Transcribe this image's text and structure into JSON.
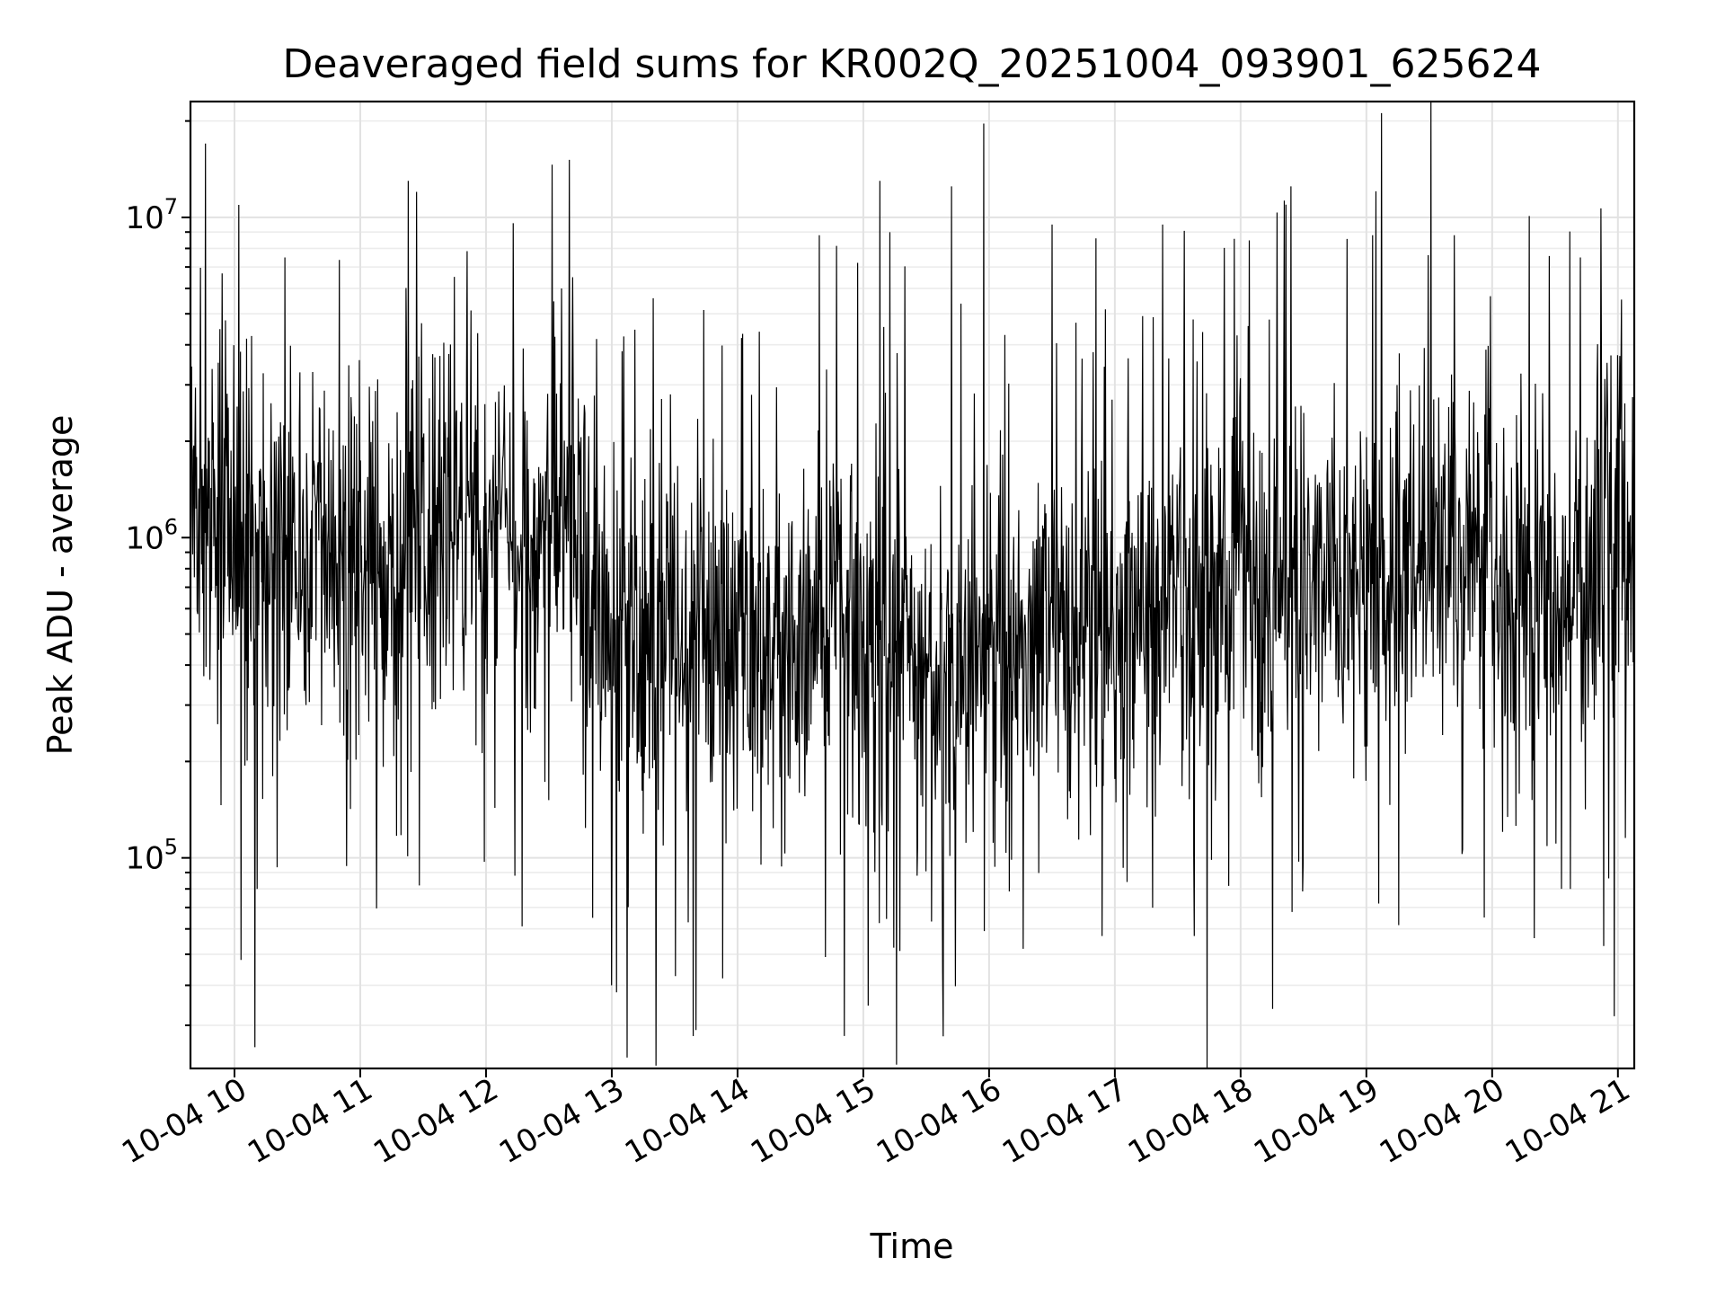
{
  "chart_data": {
    "type": "line",
    "title": "Deaveraged field sums for KR002Q_20251004_093901_625624",
    "xlabel": "Time",
    "ylabel": "Peak ADU - average",
    "yscale": "log",
    "ylim": [
      22000,
      23000000
    ],
    "xlim_hours": [
      9.65,
      21.13
    ],
    "grid": true,
    "x_ticks": [
      {
        "label": "10-04 10",
        "hour": 10
      },
      {
        "label": "10-04 11",
        "hour": 11
      },
      {
        "label": "10-04 12",
        "hour": 12
      },
      {
        "label": "10-04 13",
        "hour": 13
      },
      {
        "label": "10-04 14",
        "hour": 14
      },
      {
        "label": "10-04 15",
        "hour": 15
      },
      {
        "label": "10-04 16",
        "hour": 16
      },
      {
        "label": "10-04 17",
        "hour": 17
      },
      {
        "label": "10-04 18",
        "hour": 18
      },
      {
        "label": "10-04 19",
        "hour": 19
      },
      {
        "label": "10-04 20",
        "hour": 20
      },
      {
        "label": "10-04 21",
        "hour": 21
      }
    ],
    "y_ticks": [
      {
        "base": "10",
        "exp": "5",
        "value": 100000
      },
      {
        "base": "10",
        "exp": "6",
        "value": 1000000
      },
      {
        "base": "10",
        "exp": "7",
        "value": 10000000
      }
    ],
    "series": [
      {
        "name": "Peak ADU - average",
        "color": "#000000",
        "n_points": 2600,
        "baseline_trend": [
          {
            "hour": 9.65,
            "value": 1500000
          },
          {
            "hour": 10.0,
            "value": 1000000
          },
          {
            "hour": 11.0,
            "value": 850000
          },
          {
            "hour": 12.0,
            "value": 1000000
          },
          {
            "hour": 12.5,
            "value": 1100000
          },
          {
            "hour": 13.0,
            "value": 550000
          },
          {
            "hour": 14.0,
            "value": 500000
          },
          {
            "hour": 15.0,
            "value": 500000
          },
          {
            "hour": 15.6,
            "value": 380000
          },
          {
            "hour": 16.0,
            "value": 450000
          },
          {
            "hour": 17.0,
            "value": 600000
          },
          {
            "hour": 18.0,
            "value": 700000
          },
          {
            "hour": 19.0,
            "value": 750000
          },
          {
            "hour": 19.7,
            "value": 900000
          },
          {
            "hour": 20.2,
            "value": 600000
          },
          {
            "hour": 20.8,
            "value": 700000
          },
          {
            "hour": 21.13,
            "value": 1300000
          }
        ],
        "notable_peaks": [
          {
            "hour": 9.77,
            "value": 17000000
          },
          {
            "hour": 10.4,
            "value": 7500000
          },
          {
            "hour": 11.38,
            "value": 13000000
          },
          {
            "hour": 12.6,
            "value": 6000000
          },
          {
            "hour": 12.85,
            "value": 7500000
          },
          {
            "hour": 14.65,
            "value": 8800000
          },
          {
            "hour": 15.13,
            "value": 13000000
          },
          {
            "hour": 15.7,
            "value": 12500000
          },
          {
            "hour": 16.5,
            "value": 9500000
          },
          {
            "hour": 16.85,
            "value": 8600000
          },
          {
            "hour": 17.38,
            "value": 9500000
          },
          {
            "hour": 18.4,
            "value": 12500000
          },
          {
            "hour": 19.05,
            "value": 8800000
          },
          {
            "hour": 19.7,
            "value": 8800000
          },
          {
            "hour": 20.7,
            "value": 7500000
          }
        ],
        "notable_dips": [
          {
            "hour": 10.05,
            "value": 48000
          },
          {
            "hour": 10.18,
            "value": 80000
          },
          {
            "hour": 11.47,
            "value": 82000
          },
          {
            "hour": 12.85,
            "value": 65000
          },
          {
            "hour": 13.0,
            "value": 40000
          },
          {
            "hour": 13.67,
            "value": 29000
          },
          {
            "hour": 14.7,
            "value": 49000
          },
          {
            "hour": 16.27,
            "value": 52000
          },
          {
            "hour": 16.9,
            "value": 57000
          },
          {
            "hour": 17.63,
            "value": 57000
          },
          {
            "hour": 19.1,
            "value": 72000
          },
          {
            "hour": 20.62,
            "value": 80000
          }
        ]
      }
    ]
  }
}
